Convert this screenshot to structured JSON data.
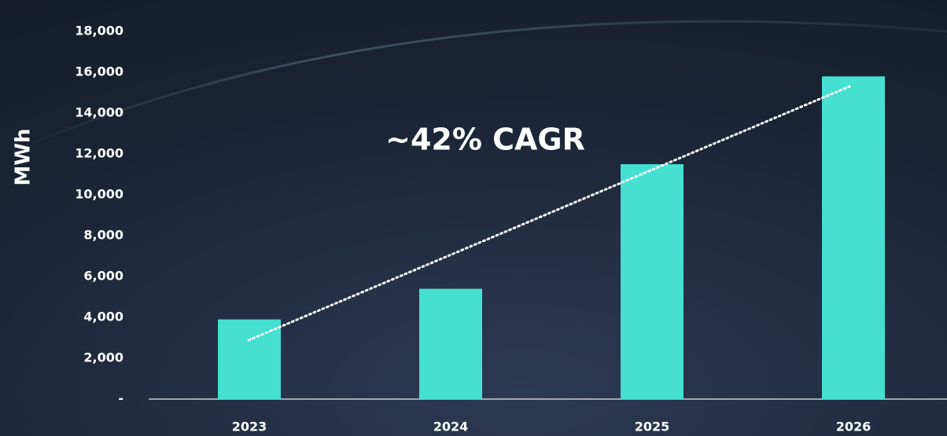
{
  "chart_data": {
    "type": "bar",
    "y_label": "MWh",
    "annotation": "~42% CAGR",
    "categories": [
      "2023",
      "2024",
      "2025",
      "2026"
    ],
    "values": [
      3900,
      5400,
      11500,
      15800
    ],
    "color": "#45e0d1",
    "ylim": [
      0,
      18000
    ],
    "yticks": [
      {
        "value": 0,
        "label": "-"
      },
      {
        "value": 2000,
        "label": "2,000"
      },
      {
        "value": 4000,
        "label": "4,000"
      },
      {
        "value": 6000,
        "label": "6,000"
      },
      {
        "value": 8000,
        "label": "8,000"
      },
      {
        "value": 10000,
        "label": "10,000"
      },
      {
        "value": 12000,
        "label": "12,000"
      },
      {
        "value": 14000,
        "label": "14,000"
      },
      {
        "value": 16000,
        "label": "16,000"
      },
      {
        "value": 18000,
        "label": "18,000"
      }
    ],
    "grid": false
  }
}
